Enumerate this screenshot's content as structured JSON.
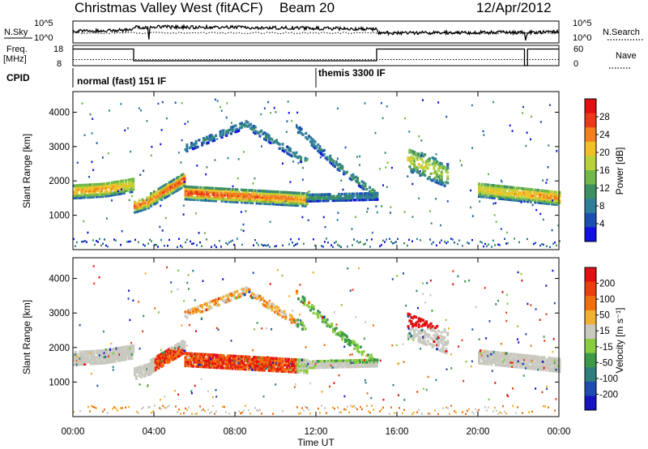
{
  "header": {
    "title": "Christmas Valley West (fitACF)",
    "beam_label": "Beam 20",
    "date": "12/Apr/2012"
  },
  "panel_labels": {
    "nsky": "N.Sky",
    "nsearch": "N.Search",
    "freq": "Freq.",
    "freq_unit": "[MHz]",
    "nave": "Nave",
    "cpid": "CPID"
  },
  "cpid_segments": [
    {
      "label": "normal (fast) 151 IF",
      "start_hour": 0.0,
      "end_hour": 12.0
    },
    {
      "label": "themis 3300 IF",
      "start_hour": 12.0,
      "end_hour": 24.0
    }
  ],
  "chart_data": [
    {
      "type": "line",
      "name": "noise-panel",
      "series_labels": [
        "N.Sky",
        "N.Search"
      ],
      "y_left_ticks": [
        "10^5",
        "10^0"
      ],
      "y_right_ticks": [
        "10^5",
        "10^0"
      ],
      "x_range_hours": [
        0,
        24
      ],
      "nsky_level_profile": [
        {
          "hour": 0.0,
          "level": 0.55
        },
        {
          "hour": 2.9,
          "level": 0.6
        },
        {
          "hour": 3.0,
          "level": 0.75
        },
        {
          "hour": 3.7,
          "level": 0.75
        },
        {
          "hour": 3.75,
          "level": 0.1
        },
        {
          "hour": 3.8,
          "level": 0.78
        },
        {
          "hour": 11.0,
          "level": 0.72
        },
        {
          "hour": 15.0,
          "level": 0.65
        },
        {
          "hour": 15.1,
          "level": 0.45
        },
        {
          "hour": 22.3,
          "level": 0.48
        },
        {
          "hour": 22.35,
          "level": 0.05
        },
        {
          "hour": 22.45,
          "level": 0.48
        },
        {
          "hour": 24.0,
          "level": 0.5
        }
      ]
    },
    {
      "type": "line",
      "name": "frequency-panel",
      "series_labels": [
        "Freq.",
        "Nave"
      ],
      "y_left_ticks": [
        "18",
        "8"
      ],
      "y_right_ticks": [
        "60",
        "0"
      ],
      "x_range_hours": [
        0,
        24
      ],
      "freq_steps": [
        {
          "start_hour": 0.0,
          "end_hour": 3.0,
          "freq_mhz": 16.2
        },
        {
          "start_hour": 3.0,
          "end_hour": 15.0,
          "freq_mhz": 10.4
        },
        {
          "start_hour": 15.0,
          "end_hour": 22.3,
          "freq_mhz": 16.2
        },
        {
          "start_hour": 22.45,
          "end_hour": 24.0,
          "freq_mhz": 16.2
        }
      ],
      "nave_level": 0.3
    },
    {
      "type": "heatmap",
      "name": "power-panel",
      "ylabel": "Slant Range [km]",
      "ylim": [
        0,
        4600
      ],
      "y_ticks": [
        1000,
        2000,
        3000,
        4000
      ],
      "colorbar_label": "Power [dB]",
      "colorbar_ticks": [
        4,
        8,
        12,
        16,
        20,
        24,
        28
      ],
      "colorbar_range": [
        0,
        32
      ],
      "colorbar_colors": [
        "#1010e0",
        "#1c50b0",
        "#2f7f9a",
        "#3d8f64",
        "#72b84a",
        "#b9d23b",
        "#f0c02a",
        "#f08020",
        "#e83a18",
        "#e01010"
      ]
    },
    {
      "type": "heatmap",
      "name": "velocity-panel",
      "ylabel": "Slant Range [km]",
      "ylim": [
        0,
        4600
      ],
      "y_ticks": [
        1000,
        2000,
        3000,
        4000
      ],
      "colorbar_label": "Velocity [m s⁻¹]",
      "colorbar_ticks": [
        200,
        100,
        50,
        15,
        -15,
        -50,
        -100,
        -200
      ],
      "colorbar_colors": [
        "#1515c0",
        "#1f4cb0",
        "#2e7e7e",
        "#3c9a48",
        "#88cc40",
        "#c9c9c0",
        "#f0b030",
        "#f07010",
        "#e84010",
        "#e01010"
      ]
    }
  ],
  "x_axis": {
    "label": "Time UT",
    "ticks": [
      "00:00",
      "04:00",
      "08:00",
      "12:00",
      "16:00",
      "20:00",
      "00:00"
    ],
    "range_hours": [
      0,
      24
    ]
  },
  "scatter_features": [
    {
      "kind": "band",
      "start_hour": 0.0,
      "end_hour": 3.0,
      "center_km": [
        1750,
        1800,
        1950
      ],
      "width_km": 420,
      "power_profile": [
        22,
        24,
        20
      ]
    },
    {
      "kind": "band",
      "start_hour": 3.0,
      "end_hour": 3.8,
      "center_km": [
        1300,
        1450
      ],
      "width_km": 350,
      "power_profile": [
        26,
        24
      ]
    },
    {
      "kind": "band",
      "start_hour": 3.8,
      "end_hour": 5.5,
      "center_km": [
        1500,
        2100
      ],
      "width_km": 380,
      "power_profile": [
        24,
        28
      ]
    },
    {
      "kind": "band",
      "start_hour": 5.5,
      "end_hour": 11.5,
      "center_km": [
        1700,
        1500
      ],
      "width_km": 380,
      "power_profile": [
        28,
        24
      ]
    },
    {
      "kind": "band",
      "start_hour": 11.5,
      "end_hour": 15.0,
      "center_km": [
        1550,
        1600
      ],
      "width_km": 200,
      "power_profile": [
        12,
        8
      ]
    },
    {
      "kind": "band",
      "start_hour": 20.0,
      "end_hour": 24.0,
      "center_km": [
        1800,
        1550
      ],
      "width_km": 420,
      "power_profile": [
        20,
        24
      ]
    },
    {
      "kind": "arc",
      "start_hour": 5.5,
      "end_hour": 11.5,
      "center_km": [
        3000,
        3700,
        2600
      ],
      "width_km": 220,
      "power_profile": [
        8,
        10
      ]
    },
    {
      "kind": "arc",
      "start_hour": 11.0,
      "end_hour": 15.0,
      "center_km": [
        3600,
        2500,
        1600
      ],
      "width_km": 220,
      "power_profile": [
        8,
        12
      ]
    },
    {
      "kind": "patch",
      "start_hour": 16.5,
      "end_hour": 18.5,
      "center_km": [
        2700,
        2200
      ],
      "width_km": 700,
      "power_profile": [
        20,
        16
      ]
    }
  ]
}
